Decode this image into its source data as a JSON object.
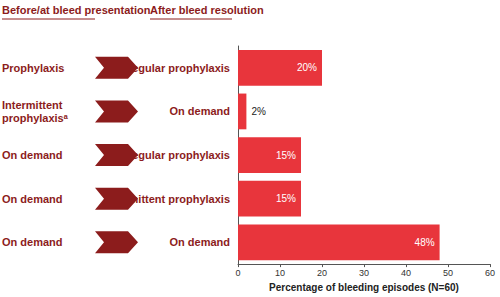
{
  "chart_data": {
    "type": "bar",
    "orientation": "horizontal",
    "headers": {
      "before": "Before/at bleed presentation",
      "after": "After bleed resolution"
    },
    "before_labels": [
      "Prophylaxis",
      "Intermittent prophylaxisᵃ",
      "On demand",
      "On demand",
      "On demand"
    ],
    "categories": [
      "Regular prophylaxis",
      "On demand",
      "Regular prophylaxis",
      "Intermittent prophylaxis",
      "On demand"
    ],
    "values": [
      20,
      2,
      15,
      15,
      48
    ],
    "value_labels": [
      "20%",
      "2%",
      "15%",
      "15%",
      "48%"
    ],
    "data_labels": true,
    "color": "#e8353c",
    "xlabel": "Percentage of bleeding episodes (N=60)",
    "xlim": [
      0,
      60
    ],
    "xticks": [
      0,
      10,
      20,
      30,
      40,
      50,
      60
    ],
    "grid": false
  }
}
